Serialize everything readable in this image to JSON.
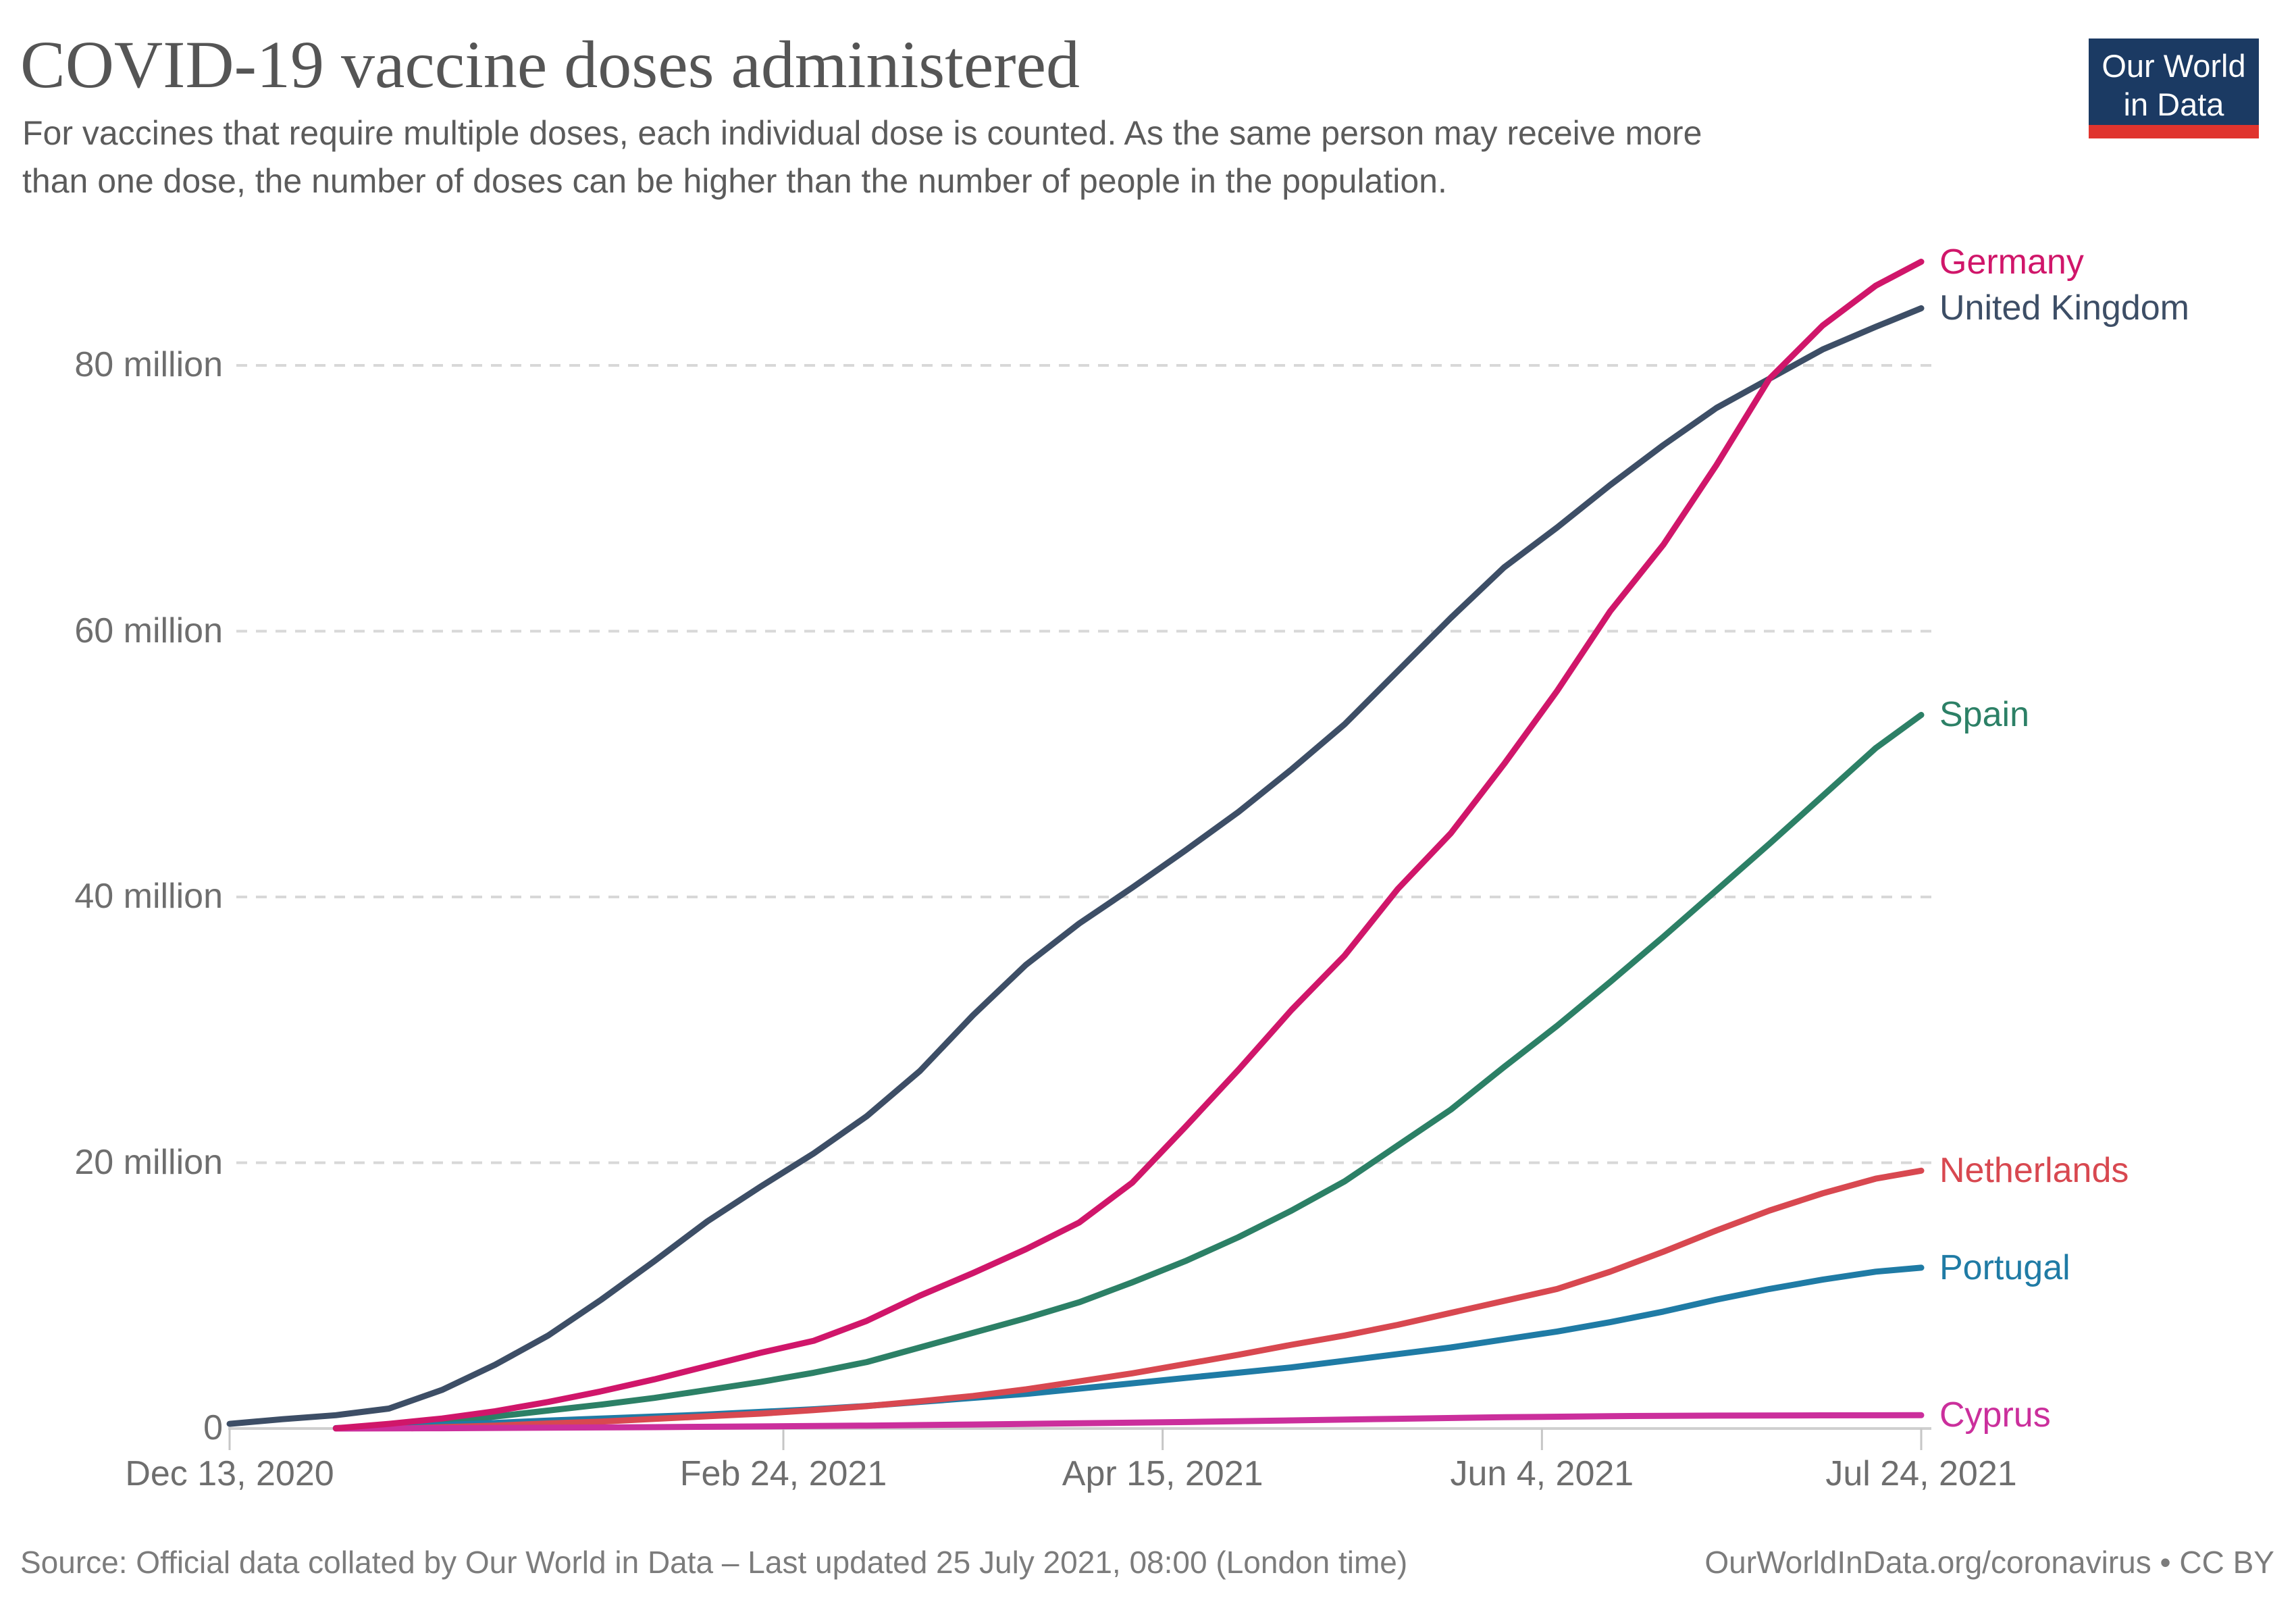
{
  "chart_data": {
    "type": "line",
    "title": "COVID-19 vaccine doses administered",
    "subtitle_line1": "For vaccines that require multiple doses, each individual dose is counted. As the same person may receive more",
    "subtitle_line2": "than one dose, the number of doses can be higher than the number of people in the population.",
    "grid": true,
    "legend_position": "right-edge-labels",
    "x_axis": {
      "total_days": 223,
      "start_date": "Dec 13, 2020",
      "end_date": "Jul 24, 2021",
      "ticks": [
        {
          "label": "Dec 13, 2020",
          "day": 0
        },
        {
          "label": "Feb 24, 2021",
          "day": 73
        },
        {
          "label": "Apr 15, 2021",
          "day": 123
        },
        {
          "label": "Jun 4, 2021",
          "day": 173
        },
        {
          "label": "Jul 24, 2021",
          "day": 223
        }
      ]
    },
    "y_axis": {
      "unit": "doses (millions)",
      "max": 88,
      "ticks": [
        {
          "label": "0",
          "value": 0
        },
        {
          "label": "20 million",
          "value": 20
        },
        {
          "label": "40 million",
          "value": 40
        },
        {
          "label": "60 million",
          "value": 60
        },
        {
          "label": "80 million",
          "value": 80
        }
      ]
    },
    "series": [
      {
        "name": "United Kingdom",
        "color": "#3d4e66",
        "end_value_million": 84.3,
        "points": [
          [
            0,
            0.35
          ],
          [
            7,
            0.7
          ],
          [
            14,
            1.0
          ],
          [
            21,
            1.5
          ],
          [
            28,
            2.9
          ],
          [
            35,
            4.8
          ],
          [
            42,
            7.0
          ],
          [
            49,
            9.7
          ],
          [
            56,
            12.6
          ],
          [
            63,
            15.6
          ],
          [
            70,
            18.2
          ],
          [
            77,
            20.7
          ],
          [
            84,
            23.5
          ],
          [
            91,
            26.9
          ],
          [
            98,
            31.1
          ],
          [
            105,
            34.9
          ],
          [
            112,
            38.0
          ],
          [
            119,
            40.7
          ],
          [
            126,
            43.5
          ],
          [
            133,
            46.4
          ],
          [
            140,
            49.6
          ],
          [
            147,
            53.0
          ],
          [
            154,
            57.0
          ],
          [
            161,
            61.0
          ],
          [
            168,
            64.8
          ],
          [
            175,
            67.8
          ],
          [
            182,
            71.0
          ],
          [
            189,
            74.0
          ],
          [
            196,
            76.8
          ],
          [
            203,
            79.0
          ],
          [
            210,
            81.2
          ],
          [
            217,
            82.9
          ],
          [
            223,
            84.3
          ]
        ]
      },
      {
        "name": "Spain",
        "color": "#2c8066",
        "end_value_million": 53.7,
        "points": [
          [
            21,
            0.05
          ],
          [
            28,
            0.45
          ],
          [
            35,
            0.9
          ],
          [
            42,
            1.35
          ],
          [
            49,
            1.8
          ],
          [
            56,
            2.3
          ],
          [
            63,
            2.9
          ],
          [
            70,
            3.5
          ],
          [
            77,
            4.2
          ],
          [
            84,
            5.0
          ],
          [
            91,
            6.1
          ],
          [
            98,
            7.2
          ],
          [
            105,
            8.3
          ],
          [
            112,
            9.5
          ],
          [
            119,
            11.0
          ],
          [
            126,
            12.6
          ],
          [
            133,
            14.4
          ],
          [
            140,
            16.4
          ],
          [
            147,
            18.6
          ],
          [
            154,
            21.3
          ],
          [
            161,
            24.0
          ],
          [
            168,
            27.2
          ],
          [
            175,
            30.3
          ],
          [
            182,
            33.6
          ],
          [
            189,
            37.0
          ],
          [
            196,
            40.5
          ],
          [
            203,
            44.0
          ],
          [
            210,
            47.6
          ],
          [
            217,
            51.2
          ],
          [
            223,
            53.7
          ]
        ]
      },
      {
        "name": "Portugal",
        "color": "#1f7ba5",
        "end_value_million": 12.1,
        "points": [
          [
            14,
            0.03
          ],
          [
            21,
            0.12
          ],
          [
            28,
            0.27
          ],
          [
            35,
            0.42
          ],
          [
            42,
            0.6
          ],
          [
            49,
            0.75
          ],
          [
            56,
            0.9
          ],
          [
            63,
            1.05
          ],
          [
            70,
            1.25
          ],
          [
            77,
            1.45
          ],
          [
            84,
            1.7
          ],
          [
            91,
            2.0
          ],
          [
            98,
            2.3
          ],
          [
            105,
            2.6
          ],
          [
            112,
            3.0
          ],
          [
            119,
            3.4
          ],
          [
            126,
            3.8
          ],
          [
            133,
            4.2
          ],
          [
            140,
            4.6
          ],
          [
            147,
            5.1
          ],
          [
            154,
            5.6
          ],
          [
            161,
            6.1
          ],
          [
            168,
            6.7
          ],
          [
            175,
            7.3
          ],
          [
            182,
            8.0
          ],
          [
            189,
            8.8
          ],
          [
            196,
            9.7
          ],
          [
            203,
            10.5
          ],
          [
            210,
            11.2
          ],
          [
            217,
            11.8
          ],
          [
            223,
            12.1
          ]
        ]
      },
      {
        "name": "Netherlands",
        "color": "#d84850",
        "end_value_million": 19.4,
        "points": [
          [
            24,
            0.02
          ],
          [
            28,
            0.1
          ],
          [
            35,
            0.22
          ],
          [
            42,
            0.38
          ],
          [
            49,
            0.52
          ],
          [
            56,
            0.72
          ],
          [
            63,
            0.92
          ],
          [
            70,
            1.12
          ],
          [
            77,
            1.38
          ],
          [
            84,
            1.68
          ],
          [
            91,
            2.05
          ],
          [
            98,
            2.45
          ],
          [
            105,
            2.95
          ],
          [
            112,
            3.55
          ],
          [
            119,
            4.15
          ],
          [
            126,
            4.85
          ],
          [
            133,
            5.55
          ],
          [
            140,
            6.3
          ],
          [
            147,
            7.0
          ],
          [
            154,
            7.8
          ],
          [
            161,
            8.7
          ],
          [
            168,
            9.6
          ],
          [
            175,
            10.5
          ],
          [
            182,
            11.8
          ],
          [
            189,
            13.3
          ],
          [
            196,
            14.9
          ],
          [
            203,
            16.4
          ],
          [
            210,
            17.7
          ],
          [
            217,
            18.8
          ],
          [
            223,
            19.4
          ]
        ]
      },
      {
        "name": "Cyprus",
        "color": "#cb2f9c",
        "end_value_million": 1.0,
        "points": [
          [
            14,
            0.0
          ],
          [
            28,
            0.02
          ],
          [
            42,
            0.06
          ],
          [
            56,
            0.1
          ],
          [
            70,
            0.16
          ],
          [
            84,
            0.22
          ],
          [
            98,
            0.3
          ],
          [
            112,
            0.39
          ],
          [
            126,
            0.49
          ],
          [
            140,
            0.61
          ],
          [
            154,
            0.73
          ],
          [
            168,
            0.85
          ],
          [
            182,
            0.93
          ],
          [
            196,
            0.97
          ],
          [
            210,
            0.99
          ],
          [
            223,
            1.0
          ]
        ]
      },
      {
        "name": "Germany",
        "color": "#d0166a",
        "end_value_million": 87.8,
        "points": [
          [
            14,
            0.02
          ],
          [
            21,
            0.35
          ],
          [
            28,
            0.75
          ],
          [
            35,
            1.3
          ],
          [
            42,
            2.0
          ],
          [
            49,
            2.8
          ],
          [
            56,
            3.7
          ],
          [
            63,
            4.7
          ],
          [
            70,
            5.7
          ],
          [
            77,
            6.6
          ],
          [
            84,
            8.1
          ],
          [
            91,
            10.0
          ],
          [
            98,
            11.7
          ],
          [
            105,
            13.5
          ],
          [
            112,
            15.5
          ],
          [
            119,
            18.5
          ],
          [
            126,
            22.7
          ],
          [
            133,
            27.0
          ],
          [
            140,
            31.5
          ],
          [
            147,
            35.6
          ],
          [
            154,
            40.6
          ],
          [
            161,
            44.8
          ],
          [
            168,
            50.0
          ],
          [
            175,
            55.5
          ],
          [
            182,
            61.5
          ],
          [
            189,
            66.5
          ],
          [
            196,
            72.5
          ],
          [
            203,
            79.0
          ],
          [
            210,
            83.0
          ],
          [
            217,
            86.0
          ],
          [
            223,
            87.8
          ]
        ]
      }
    ],
    "colors": {
      "gridline": "#d8d8d8",
      "axis_baseline": "#cfcfcf",
      "tick_mark": "#c6c6c6"
    }
  },
  "logo": {
    "line1": "Our World",
    "line2": "in Data",
    "bg_color": "#1b3a63",
    "stripe_color": "#e0342e"
  },
  "footer": {
    "source": "Source: Official data collated by Our World in Data – Last updated 25 July 2021, 08:00 (London time)",
    "url": "OurWorldInData.org/coronavirus",
    "separator": "•",
    "license": "CC BY"
  }
}
